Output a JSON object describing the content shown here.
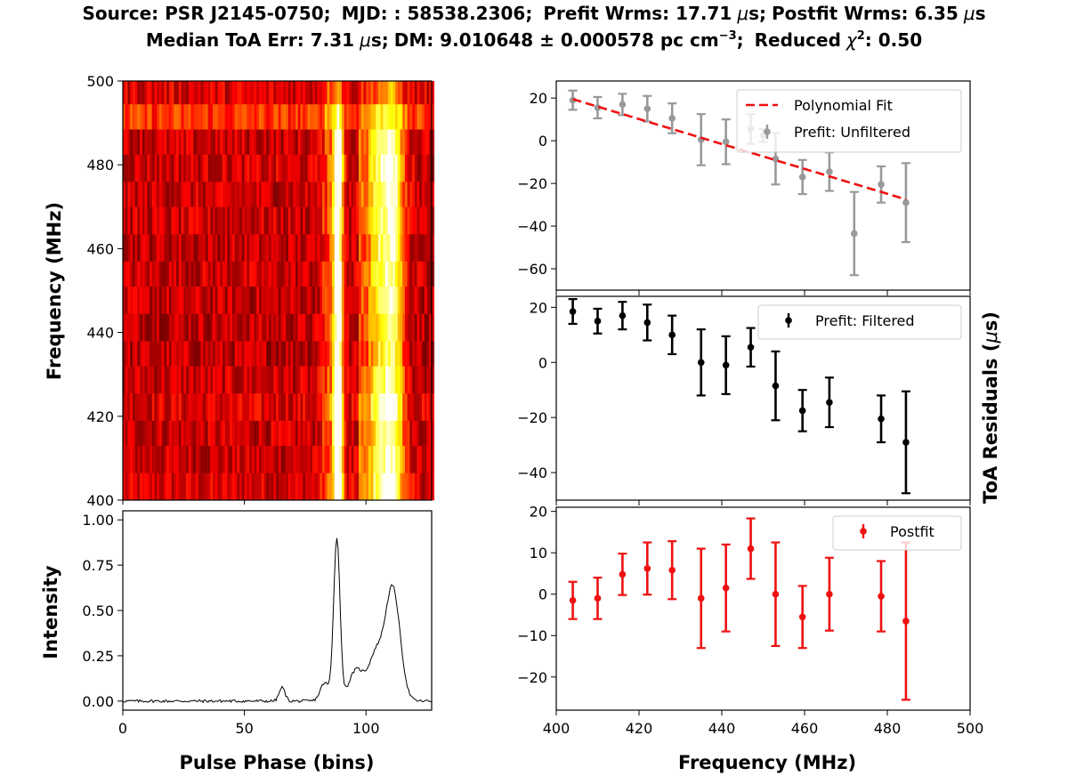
{
  "title": {
    "line1": {
      "source_label": "Source: PSR J2145-0750;",
      "mjd_label": "MJD: : 58538.2306;",
      "prefit_label": "Prefit Wrms: 17.71",
      "prefit_unit_mu": "μ",
      "prefit_unit_s": "s;",
      "postfit_label": "Postfit Wrms: 6.35",
      "postfit_unit_mu": "μ",
      "postfit_unit_s": "s"
    },
    "line2": {
      "median_label": "Median ToA Err: 7.31",
      "median_unit_mu": "μ",
      "median_unit_s": "s;",
      "dm_label": "DM: 9.010648 ± 0.000578 pc cm",
      "dm_exp": "−3",
      "dm_end": ";",
      "chi_label": "Reduced",
      "chi_symbol": "χ",
      "chi_exp": "2",
      "chi_value": ": 0.50"
    }
  },
  "colors": {
    "gray": "#999999",
    "black": "#000000",
    "red": "#ee1111",
    "fit": "#ee1111"
  },
  "chart_data": [
    {
      "id": "waterfall",
      "type": "heatmap",
      "xlim": [
        0,
        127
      ],
      "ylim": [
        400,
        500
      ],
      "ylabel": "Frequency (MHz)",
      "yticks": [
        400,
        420,
        440,
        460,
        480,
        500
      ],
      "ytick_labels": [
        "400",
        "420",
        "440",
        "460",
        "480",
        "500"
      ],
      "n_bins": 128,
      "colormap": "hot",
      "channels": [
        {
          "fmin": 400,
          "fmax": 406.5,
          "peak1": 0.95,
          "peak2": 0.85,
          "floor": 0.32
        },
        {
          "fmin": 406.5,
          "fmax": 413,
          "peak1": 0.93,
          "peak2": 0.8,
          "floor": 0.3
        },
        {
          "fmin": 413,
          "fmax": 419,
          "peak1": 0.92,
          "peak2": 0.8,
          "floor": 0.3
        },
        {
          "fmin": 419,
          "fmax": 425.5,
          "peak1": 0.97,
          "peak2": 0.9,
          "floor": 0.33
        },
        {
          "fmin": 425.5,
          "fmax": 432,
          "peak1": 0.85,
          "peak2": 0.72,
          "floor": 0.3
        },
        {
          "fmin": 432,
          "fmax": 438,
          "peak1": 0.82,
          "peak2": 0.7,
          "floor": 0.28
        },
        {
          "fmin": 438,
          "fmax": 444.5,
          "peak1": 0.83,
          "peak2": 0.72,
          "floor": 0.29
        },
        {
          "fmin": 444.5,
          "fmax": 451,
          "peak1": 0.84,
          "peak2": 0.74,
          "floor": 0.29
        },
        {
          "fmin": 451,
          "fmax": 457,
          "peak1": 0.85,
          "peak2": 0.75,
          "floor": 0.3
        },
        {
          "fmin": 457,
          "fmax": 463.5,
          "peak1": 0.84,
          "peak2": 0.78,
          "floor": 0.29
        },
        {
          "fmin": 463.5,
          "fmax": 470,
          "peak1": 0.86,
          "peak2": 0.78,
          "floor": 0.3
        },
        {
          "fmin": 470,
          "fmax": 476,
          "peak1": 0.88,
          "peak2": 0.82,
          "floor": 0.3
        },
        {
          "fmin": 476,
          "fmax": 482.5,
          "peak1": 0.95,
          "peak2": 0.85,
          "floor": 0.31
        },
        {
          "fmin": 482.5,
          "fmax": 488.5,
          "peak1": 0.9,
          "peak2": 0.82,
          "floor": 0.3
        },
        {
          "fmin": 488.5,
          "fmax": 494.5,
          "peak1": 0.45,
          "peak2": 0.45,
          "floor": 0.45
        },
        {
          "fmin": 494.5,
          "fmax": 500,
          "peak1": 0.33,
          "peak2": 0.33,
          "floor": 0.33
        }
      ]
    },
    {
      "id": "profile",
      "type": "line",
      "xlabel": "Pulse Phase (bins)",
      "ylabel": "Intensity",
      "xlim": [
        0,
        127
      ],
      "ylim": [
        -0.05,
        1.05
      ],
      "xticks": [
        0,
        50,
        100
      ],
      "xtick_labels": [
        "0",
        "50",
        "100"
      ],
      "yticks": [
        0,
        0.25,
        0.5,
        0.75,
        1.0
      ],
      "ytick_labels": [
        "0.00",
        "0.25",
        "0.50",
        "0.75",
        "1.00"
      ],
      "baseline_noise": 0.008,
      "components": [
        {
          "center": 65.5,
          "width": 1.2,
          "amp": 0.075
        },
        {
          "center": 83,
          "width": 1.8,
          "amp": 0.1
        },
        {
          "center": 88,
          "width": 1.3,
          "amp": 0.9
        },
        {
          "center": 96,
          "width": 3.0,
          "amp": 0.17
        },
        {
          "center": 104,
          "width": 3.0,
          "amp": 0.25
        },
        {
          "center": 111,
          "width": 3.0,
          "amp": 0.62
        }
      ]
    },
    {
      "id": "prefit-unfiltered",
      "type": "scatter",
      "xlim": [
        400,
        500
      ],
      "ylim": [
        -70,
        28
      ],
      "yticks": [
        20,
        0,
        -20,
        -40,
        -60
      ],
      "ytick_labels": [
        "20",
        "0",
        "−20",
        "−40",
        "−60"
      ],
      "legend": [
        {
          "label": "Polynomial Fit",
          "style": "dashed-line"
        },
        {
          "label": "Prefit: Unfiltered",
          "style": "errorbar"
        }
      ],
      "legend_loc": "upper right",
      "series": [
        {
          "name": "Prefit: Unfiltered",
          "color": "gray",
          "x": [
            404,
            410,
            416,
            422,
            428,
            435,
            441,
            447,
            450,
            453,
            459.5,
            466,
            472,
            478.5,
            484.5
          ],
          "y": [
            19,
            15.5,
            17,
            15,
            10.5,
            0.5,
            -0.5,
            5.5,
            2.5,
            -8.5,
            -17,
            -14.5,
            -43.5,
            -20.5,
            -29
          ],
          "err": [
            4.5,
            5,
            5,
            6,
            7,
            12,
            10.5,
            7,
            3,
            12,
            8,
            9,
            19.5,
            8.5,
            18.5
          ]
        },
        {
          "name": "Polynomial Fit",
          "color": "fit",
          "x": [
            404,
            484.5
          ],
          "y": [
            19.5,
            -27.5
          ]
        }
      ]
    },
    {
      "id": "prefit-filtered",
      "type": "scatter",
      "xlim": [
        400,
        500
      ],
      "ylim": [
        -50,
        24
      ],
      "yticks": [
        20,
        0,
        -20,
        -40
      ],
      "ytick_labels": [
        "20",
        "0",
        "−20",
        "−40"
      ],
      "legend": [
        {
          "label": "Prefit: Filtered",
          "style": "errorbar"
        }
      ],
      "legend_loc": "upper right",
      "series": [
        {
          "name": "Prefit: Filtered",
          "color": "black",
          "x": [
            404,
            410,
            416,
            422,
            428,
            435,
            441,
            447,
            453,
            459.5,
            466,
            478.5,
            484.5
          ],
          "y": [
            18.5,
            15,
            17,
            14.5,
            10,
            0,
            -1,
            5.5,
            -8.5,
            -17.5,
            -14.5,
            -20.5,
            -29
          ],
          "err": [
            4.5,
            4.5,
            5,
            6.5,
            7,
            12,
            10.5,
            7,
            12.5,
            7.5,
            9,
            8.5,
            18.5
          ]
        }
      ]
    },
    {
      "id": "postfit",
      "type": "scatter",
      "xlabel": "Frequency (MHz)",
      "xlim": [
        400,
        500
      ],
      "ylim": [
        -28,
        21
      ],
      "xticks": [
        400,
        420,
        440,
        460,
        480,
        500
      ],
      "xtick_labels": [
        "400",
        "420",
        "440",
        "460",
        "480",
        "500"
      ],
      "yticks": [
        20,
        10,
        0,
        -10,
        -20
      ],
      "ytick_labels": [
        "20",
        "10",
        "0",
        "−10",
        "−20"
      ],
      "legend": [
        {
          "label": "Postfit",
          "style": "errorbar"
        }
      ],
      "legend_loc": "upper right",
      "series": [
        {
          "name": "Postfit",
          "color": "red",
          "x": [
            404,
            410,
            416,
            422,
            428,
            435,
            441,
            447,
            453,
            459.5,
            466,
            478.5,
            484.5
          ],
          "y": [
            -1.5,
            -1,
            4.8,
            6.2,
            5.8,
            -1,
            1.5,
            11,
            0,
            -5.5,
            0,
            -0.5,
            -6.5
          ],
          "err": [
            4.5,
            5,
            5,
            6.3,
            7,
            12,
            10.5,
            7.3,
            12.5,
            7.5,
            8.8,
            8.5,
            19
          ]
        }
      ]
    }
  ],
  "shared_ylabel": {
    "text_main": "ToA Residuals (",
    "text_mu": "μ",
    "text_end": "s)"
  }
}
